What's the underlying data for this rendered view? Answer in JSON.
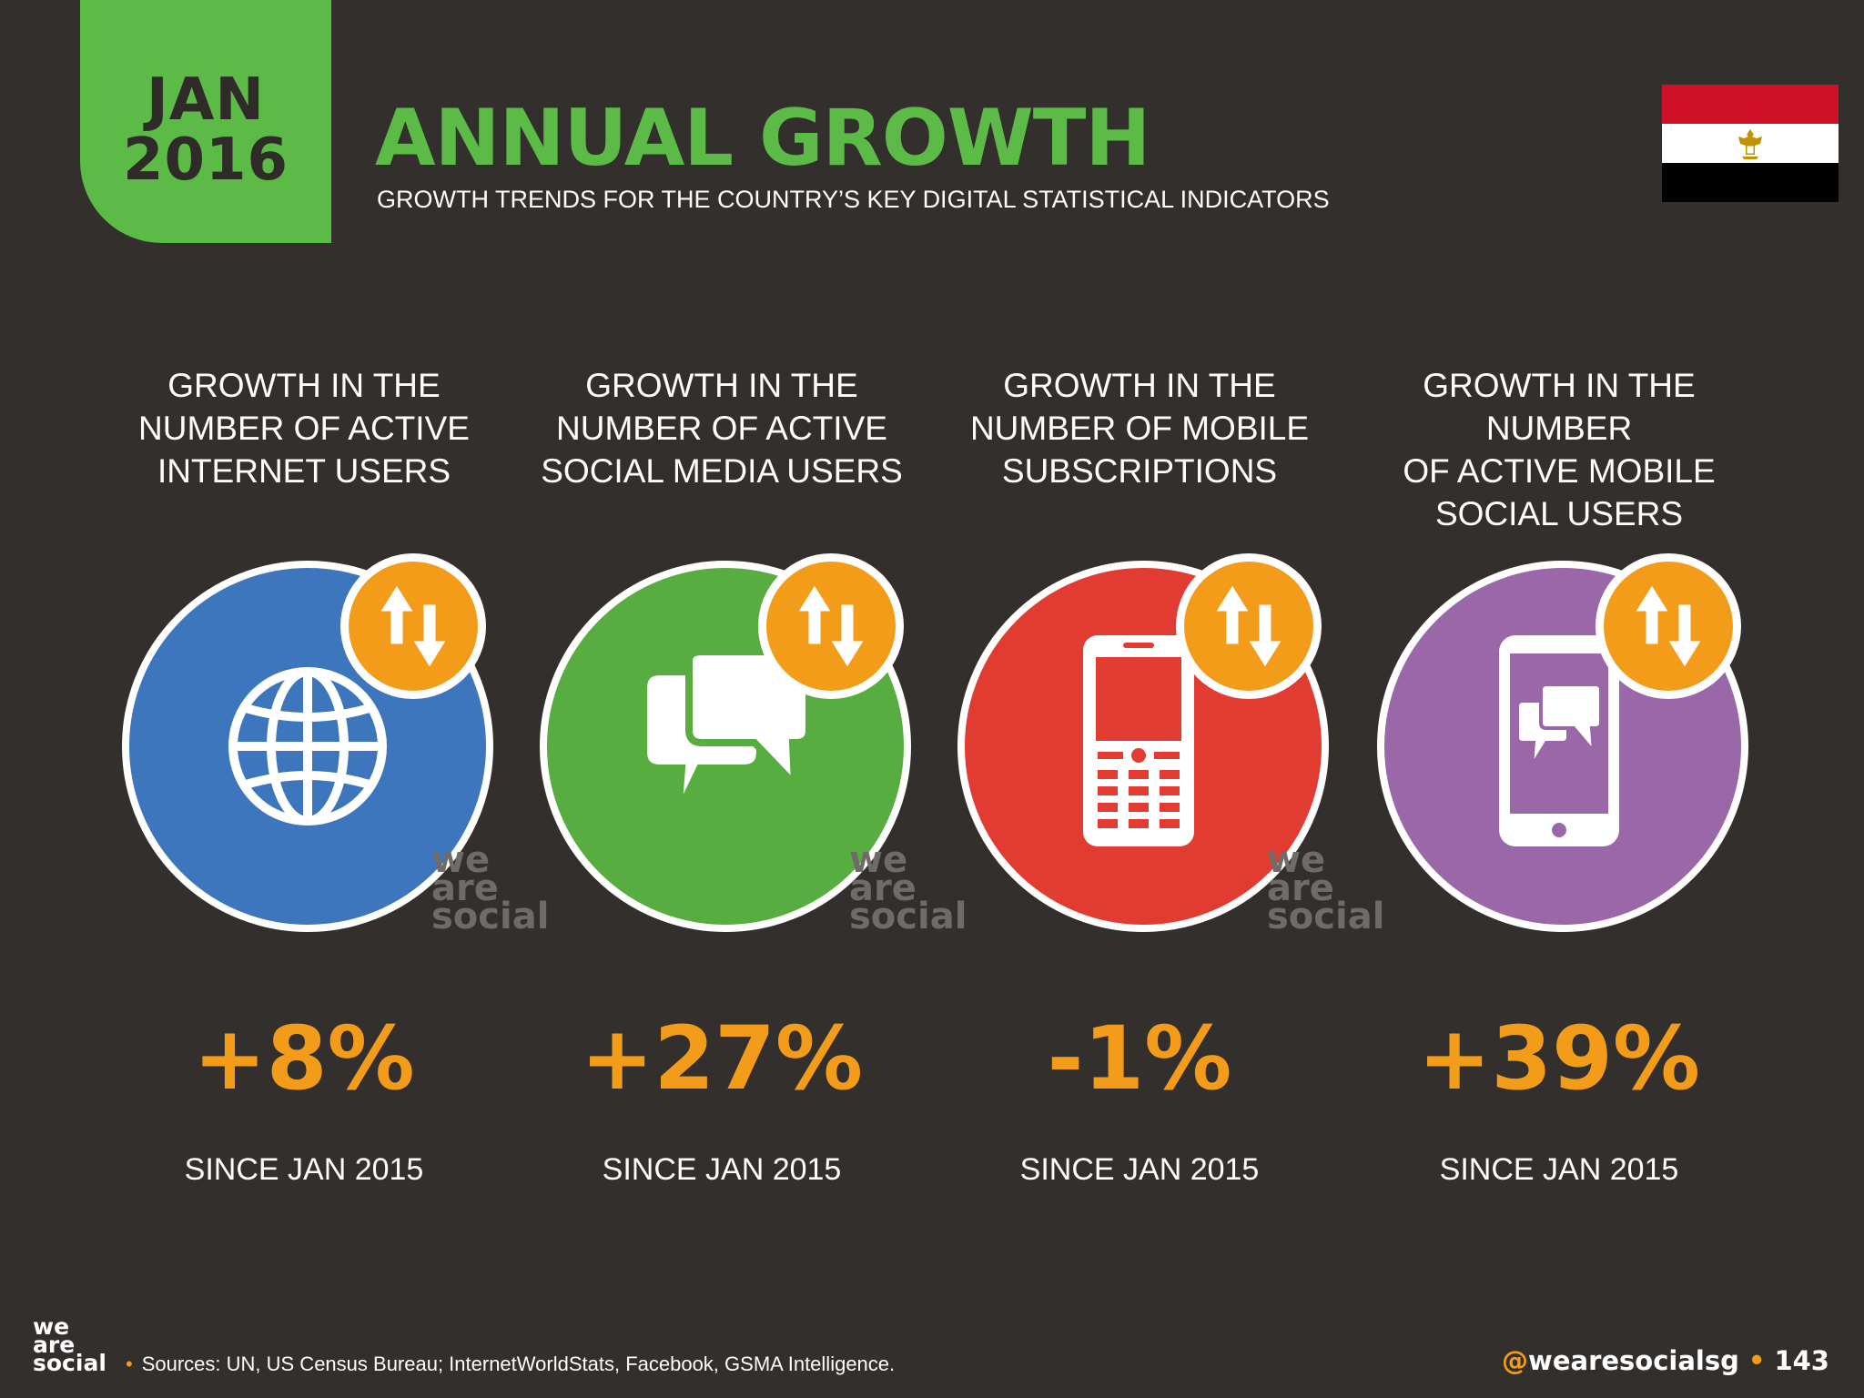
{
  "header": {
    "date_month": "JAN",
    "date_year": "2016",
    "title": "ANNUAL GROWTH",
    "subtitle": "GROWTH TRENDS FOR THE COUNTRY’S KEY DIGITAL STATISTICAL INDICATORS",
    "flag_icon": "egypt-flag-icon",
    "accent_color": "#5cbb46"
  },
  "indicators": [
    {
      "label": "GROWTH IN THE\nNUMBER OF ACTIVE\nINTERNET USERS",
      "icon": "globe-icon",
      "color": "#3d76bc",
      "value": "+8%",
      "since": "SINCE JAN 2015"
    },
    {
      "label": "GROWTH IN THE\nNUMBER OF ACTIVE\nSOCIAL MEDIA USERS",
      "icon": "chat-bubbles-icon",
      "color": "#57ad3f",
      "value": "+27%",
      "since": "SINCE JAN 2015"
    },
    {
      "label": "GROWTH IN THE\nNUMBER OF MOBILE\nSUBSCRIPTIONS",
      "icon": "mobile-phone-icon",
      "color": "#e23b32",
      "value": "-1%",
      "since": "SINCE JAN 2015"
    },
    {
      "label": "GROWTH IN THE NUMBER\nOF ACTIVE MOBILE\nSOCIAL USERS",
      "icon": "smartphone-chat-icon",
      "color": "#9a68a9",
      "value": "+39%",
      "since": "SINCE JAN 2015"
    }
  ],
  "badge": {
    "icon": "up-down-arrows-icon",
    "color": "#f39c19"
  },
  "watermark": {
    "line1": "we",
    "line2": "are",
    "line3": "social"
  },
  "footer": {
    "logo_line1": "we",
    "logo_line2": "are",
    "logo_line3": "social",
    "sources": "Sources: UN, US Census Bureau; InternetWorldStats, Facebook, GSMA Intelligence.",
    "handle": "@wearesocialsg",
    "page_number": "143"
  }
}
